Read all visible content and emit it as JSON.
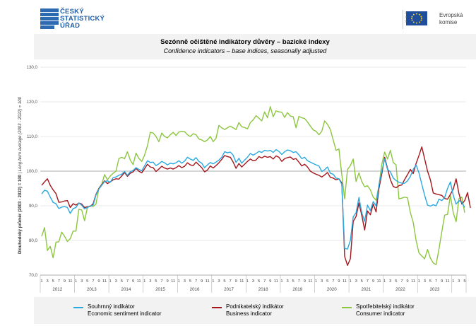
{
  "header": {
    "czso_logo_lines": [
      "ČESKÝ",
      "STATISTICKÝ",
      "ÚŘAD"
    ],
    "eu_logo_lines": [
      "Evropská",
      "komise"
    ]
  },
  "titles": {
    "main": "Sezónně očištěné indikátory důvěry – bazické indexy",
    "sub": "Confidence indicators – base indices, seasonally adjusted"
  },
  "colors": {
    "economic": "#2aa9e0",
    "business": "#a3161c",
    "consumer": "#8cc63f"
  },
  "chart_data": {
    "type": "line",
    "ylabel": "Dlouhodobý průměr (2003 - 2022) = 100",
    "ylabel_italic": " | Long-term average (2003 - 2022) = 100",
    "ylim": [
      70,
      130
    ],
    "yticks": [
      "70,0",
      "80,0",
      "90,0",
      "100,0",
      "110,0",
      "120,0",
      "130,0"
    ],
    "x_month_labels": [
      "1",
      "3",
      "5",
      "7",
      "9",
      "11"
    ],
    "years": [
      "2012",
      "2013",
      "2014",
      "2015",
      "2016",
      "2017",
      "2018",
      "2019",
      "2020",
      "2021",
      "2022",
      "2023"
    ],
    "x_start": "2012-01",
    "x_end": "2023-09",
    "reference_line": 100,
    "grid": "horizontal",
    "series": [
      {
        "name": "Souhrnný indikátor",
        "name_en": "Economic sentiment indicator",
        "key": "economic",
        "values": [
          93.4,
          94.5,
          94.2,
          92.5,
          91.0,
          90.6,
          89.2,
          89.6,
          89.8,
          89.5,
          87.8,
          89.2,
          89.5,
          90.8,
          90.2,
          89.1,
          89.5,
          89.9,
          90.2,
          93.1,
          94.8,
          95.9,
          97.0,
          97.2,
          96.8,
          98.1,
          98.3,
          98.8,
          99.1,
          99.9,
          98.8,
          99.8,
          100.2,
          101.0,
          100.5,
          100.1,
          101.5,
          103.0,
          102.5,
          102.6,
          101.6,
          102.1,
          102.8,
          102.4,
          101.8,
          102.3,
          102.1,
          102.4,
          103.0,
          102.3,
          102.9,
          104.0,
          103.5,
          103.1,
          103.9,
          102.8,
          102.3,
          101.0,
          101.8,
          102.5,
          102.1,
          102.6,
          103.2,
          104.0,
          105.6,
          105.3,
          105.5,
          104.6,
          102.5,
          103.7,
          102.3,
          103.2,
          104.0,
          105.1,
          104.6,
          105.1,
          105.7,
          105.4,
          106.0,
          105.8,
          106.0,
          105.4,
          106.2,
          105.7,
          104.8,
          105.6,
          106.1,
          105.9,
          105.4,
          105.6,
          104.7,
          103.6,
          104.0,
          103.0,
          102.6,
          102.2,
          101.8,
          101.5,
          99.9,
          100.4,
          101.2,
          99.4,
          99.1,
          98.0,
          97.8,
          96.2,
          77.7,
          77.5,
          80.0,
          86.8,
          88.0,
          92.4,
          88.0,
          85.5,
          90.2,
          88.6,
          91.2,
          90.0,
          96.0,
          100.0,
          103.5,
          100.5,
          99.8,
          98.0,
          97.3,
          96.8,
          96.5,
          96.5,
          97.2,
          98.5,
          100.5,
          101.8,
          99.5,
          96.2,
          93.0,
          90.2,
          89.9,
          90.3,
          90.0,
          91.9,
          91.5,
          92.4,
          95.0,
          96.9,
          93.0,
          90.5,
          91.5,
          91.0,
          89.5
        ],
        "label_visible": false
      },
      {
        "name": "Podnikatelský indikátor",
        "name_en": "Business indicator",
        "key": "business",
        "values": [
          95.9,
          96.9,
          97.8,
          95.9,
          94.6,
          93.5,
          91.0,
          91.1,
          91.4,
          91.5,
          89.5,
          90.6,
          90.2,
          90.8,
          90.5,
          89.5,
          89.7,
          89.8,
          90.6,
          93.3,
          95.0,
          96.1,
          97.2,
          96.4,
          96.9,
          97.5,
          97.8,
          97.7,
          98.6,
          99.6,
          98.5,
          99.4,
          99.8,
          100.8,
          100.0,
          99.5,
          100.7,
          102.0,
          101.2,
          101.0,
          99.9,
          100.6,
          101.4,
          100.9,
          100.6,
          100.9,
          100.6,
          101.0,
          101.6,
          101.0,
          101.4,
          102.4,
          101.8,
          101.6,
          102.6,
          101.8,
          101.0,
          99.8,
          100.3,
          101.5,
          100.9,
          101.6,
          102.4,
          103.4,
          104.5,
          104.2,
          104.0,
          102.6,
          100.8,
          102.2,
          101.2,
          102.0,
          102.8,
          103.5,
          103.0,
          103.2,
          104.2,
          103.8,
          104.3,
          104.0,
          104.2,
          103.5,
          104.4,
          104.0,
          102.8,
          103.6,
          103.9,
          104.1,
          103.4,
          103.6,
          102.6,
          101.5,
          102.0,
          101.2,
          100.0,
          99.5,
          99.1,
          98.8,
          98.3,
          98.9,
          99.6,
          98.2,
          98.0,
          97.5,
          97.8,
          96.6,
          75.4,
          72.8,
          74.7,
          85.5,
          86.9,
          90.8,
          87.2,
          83.0,
          88.5,
          87.4,
          90.5,
          88.2,
          95.0,
          99.2,
          104.0,
          100.8,
          97.5,
          95.6,
          95.2,
          95.8,
          96.0,
          97.6,
          99.0,
          100.5,
          99.3,
          102.2,
          104.5,
          107.0,
          103.5,
          100.0,
          97.5,
          93.7,
          93.4,
          93.2,
          93.0,
          92.1,
          91.9,
          93.3,
          94.8,
          97.8,
          93.5,
          90.5,
          91.5,
          93.8,
          89.4
        ],
        "label_visible": false
      },
      {
        "name": "Spotřebitelský indikátor",
        "name_en": "Consumer indicator",
        "key": "consumer",
        "values": [
          81.2,
          83.7,
          77.1,
          78.3,
          75.0,
          79.5,
          79.6,
          82.4,
          81.2,
          79.7,
          80.5,
          82.7,
          82.7,
          89.0,
          88.8,
          85.7,
          89.5,
          90.0,
          89.8,
          90.5,
          95.0,
          96.2,
          99.0,
          97.5,
          98.6,
          99.4,
          100.0,
          103.6,
          104.0,
          103.6,
          105.6,
          103.2,
          101.9,
          105.2,
          103.7,
          102.8,
          104.6,
          107.3,
          111.2,
          111.0,
          110.0,
          108.5,
          111.0,
          110.0,
          109.6,
          110.5,
          111.2,
          110.3,
          111.3,
          111.5,
          111.4,
          110.5,
          110.0,
          110.8,
          110.5,
          109.3,
          109.0,
          108.5,
          109.0,
          110.0,
          108.5,
          109.5,
          113.2,
          112.5,
          112.0,
          112.5,
          113.0,
          112.5,
          112.0,
          114.0,
          112.8,
          112.6,
          112.2,
          114.0,
          114.8,
          116.0,
          115.3,
          114.5,
          117.1,
          115.4,
          118.6,
          115.7,
          117.4,
          117.1,
          117.0,
          115.5,
          116.9,
          115.9,
          115.7,
          112.5,
          115.8,
          115.4,
          115.2,
          114.2,
          113.0,
          111.9,
          111.5,
          110.5,
          111.5,
          114.5,
          113.5,
          112.0,
          109.0,
          106.0,
          106.4,
          99.0,
          92.0,
          100.5,
          101.6,
          103.5,
          97.0,
          99.5,
          97.0,
          95.5,
          95.8,
          94.6,
          92.5,
          91.6,
          95.8,
          102.0,
          105.5,
          103.5,
          106.0,
          102.5,
          101.8,
          92.0,
          92.2,
          92.5,
          92.3,
          88.0,
          85.2,
          80.0,
          76.4,
          75.5,
          74.7,
          77.4,
          74.9,
          73.5,
          73.0,
          77.5,
          82.5,
          87.3,
          87.5,
          93.0,
          88.0,
          85.4,
          92.1,
          92.5,
          88.0
        ],
        "label_visible": false
      }
    ]
  }
}
